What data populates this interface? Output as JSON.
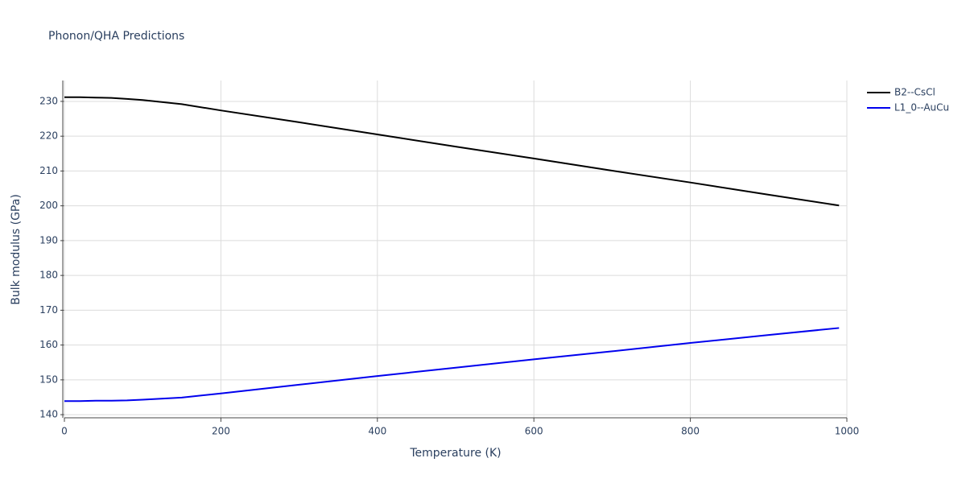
{
  "chart_data": {
    "type": "line",
    "title": "Phonon/QHA Predictions",
    "x_label": "Temperature (K)",
    "y_label": "Bulk modulus (GPa)",
    "x": [
      0,
      20,
      40,
      60,
      80,
      100,
      150,
      200,
      300,
      400,
      500,
      600,
      700,
      800,
      900,
      990
    ],
    "series": [
      {
        "name": "B2--CsCl",
        "color": "#000000",
        "values": [
          231.2,
          231.2,
          231.1,
          231.0,
          230.7,
          230.4,
          229.2,
          227.4,
          224.0,
          220.5,
          217.0,
          213.6,
          210.1,
          206.7,
          203.2,
          200.1
        ]
      },
      {
        "name": "L1_0--AuCu",
        "color": "#0000ee",
        "values": [
          143.9,
          143.9,
          144.0,
          144.0,
          144.1,
          144.3,
          144.9,
          146.1,
          148.6,
          151.1,
          153.5,
          155.9,
          158.2,
          160.6,
          162.9,
          164.9
        ]
      }
    ],
    "xlim": [
      0,
      1000
    ],
    "xticks": [
      0,
      200,
      400,
      600,
      800,
      1000
    ],
    "ylim": [
      139.1,
      236
    ],
    "yticks": [
      140,
      150,
      160,
      170,
      180,
      190,
      200,
      210,
      220,
      230
    ],
    "grid": true,
    "legend": "right"
  }
}
